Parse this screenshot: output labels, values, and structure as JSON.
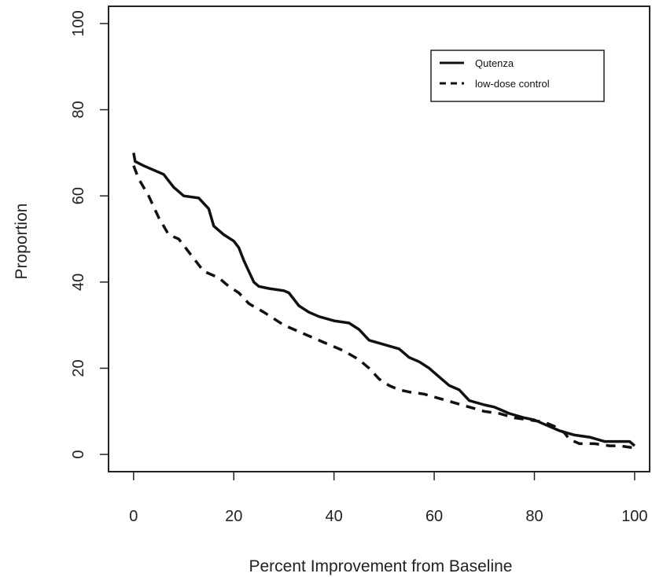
{
  "chart_data": {
    "type": "line",
    "title": "",
    "xlabel": "Percent Improvement from Baseline",
    "ylabel": "Proportion",
    "xlim": [
      -5,
      103
    ],
    "ylim": [
      -4,
      104
    ],
    "x_ticks": [
      "0",
      "20",
      "40",
      "60",
      "80",
      "100"
    ],
    "y_ticks": [
      "0",
      "20",
      "40",
      "60",
      "80",
      "100"
    ],
    "grid": false,
    "legend_position": "top-right",
    "series": [
      {
        "name": "Qutenza",
        "style": "solid",
        "color": "#111111",
        "points": [
          [
            0,
            70
          ],
          [
            0.3,
            68
          ],
          [
            2,
            67
          ],
          [
            4,
            66
          ],
          [
            6,
            65
          ],
          [
            8,
            62
          ],
          [
            10,
            60
          ],
          [
            13,
            59.5
          ],
          [
            15,
            57
          ],
          [
            16,
            53
          ],
          [
            18,
            51
          ],
          [
            20,
            49.5
          ],
          [
            21,
            48
          ],
          [
            22,
            45
          ],
          [
            24,
            40
          ],
          [
            25,
            39
          ],
          [
            27,
            38.5
          ],
          [
            30,
            38
          ],
          [
            31,
            37.5
          ],
          [
            33,
            34.5
          ],
          [
            35,
            33
          ],
          [
            37,
            32
          ],
          [
            40,
            31
          ],
          [
            43,
            30.5
          ],
          [
            45,
            29
          ],
          [
            47,
            26.5
          ],
          [
            50,
            25.5
          ],
          [
            53,
            24.5
          ],
          [
            55,
            22.5
          ],
          [
            57,
            21.5
          ],
          [
            59,
            20
          ],
          [
            61,
            18
          ],
          [
            63,
            16
          ],
          [
            65,
            15
          ],
          [
            67,
            12.5
          ],
          [
            70,
            11.5
          ],
          [
            72,
            11
          ],
          [
            75,
            9.5
          ],
          [
            78,
            8.5
          ],
          [
            80,
            8
          ],
          [
            82,
            7
          ],
          [
            85,
            5.5
          ],
          [
            88,
            4.5
          ],
          [
            91,
            4
          ],
          [
            94,
            3
          ],
          [
            96,
            3
          ],
          [
            99,
            3
          ],
          [
            100,
            2
          ]
        ]
      },
      {
        "name": "low-dose control",
        "style": "dashed",
        "color": "#111111",
        "points": [
          [
            0,
            67
          ],
          [
            1,
            64
          ],
          [
            3,
            60
          ],
          [
            5,
            55
          ],
          [
            7,
            51
          ],
          [
            9,
            50
          ],
          [
            12,
            45.5
          ],
          [
            14,
            42.5
          ],
          [
            17,
            41
          ],
          [
            19,
            39
          ],
          [
            21,
            37.5
          ],
          [
            23,
            35
          ],
          [
            26,
            33
          ],
          [
            30,
            30
          ],
          [
            33,
            28.5
          ],
          [
            36,
            27
          ],
          [
            38,
            26
          ],
          [
            40,
            25
          ],
          [
            42,
            24
          ],
          [
            45,
            22
          ],
          [
            47,
            20
          ],
          [
            49,
            17.5
          ],
          [
            51,
            16
          ],
          [
            53,
            15
          ],
          [
            55,
            14.5
          ],
          [
            58,
            14
          ],
          [
            61,
            13
          ],
          [
            64,
            12
          ],
          [
            67,
            11
          ],
          [
            70,
            10
          ],
          [
            73,
            9.5
          ],
          [
            76,
            8.5
          ],
          [
            79,
            8
          ],
          [
            82,
            7.5
          ],
          [
            84,
            6.5
          ],
          [
            86,
            5
          ],
          [
            87,
            3.5
          ],
          [
            89,
            2.5
          ],
          [
            92,
            2.5
          ],
          [
            95,
            2
          ],
          [
            97,
            2
          ],
          [
            100,
            1.5
          ]
        ]
      }
    ]
  }
}
